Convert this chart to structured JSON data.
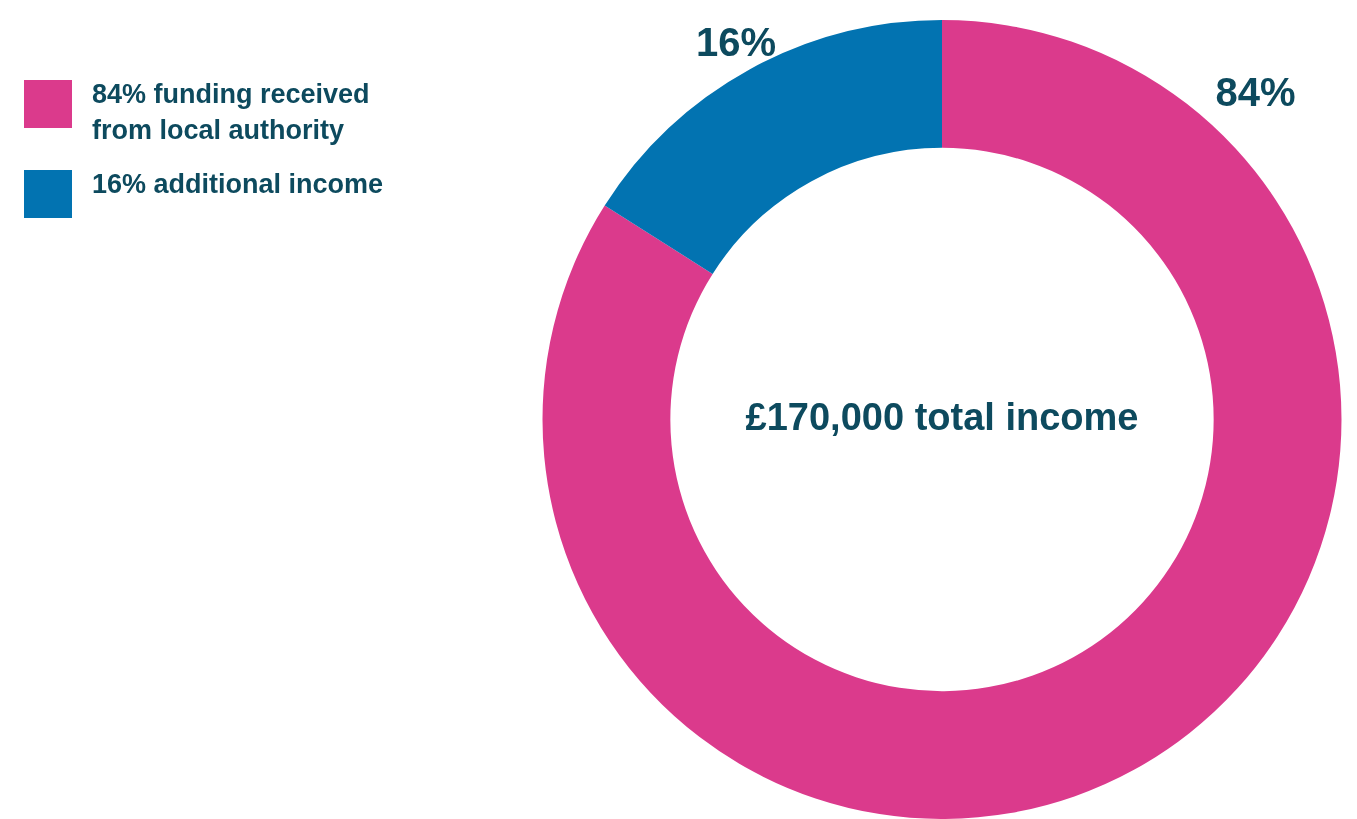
{
  "chart_data": {
    "type": "donut",
    "categories": [
      "84% funding received from local authority",
      "16% additional income"
    ],
    "values": [
      84,
      16
    ],
    "colors": [
      "#db3a8c",
      "#0273b1"
    ],
    "value_labels": [
      "84%",
      "16%"
    ],
    "annotations": [
      "£170,000 total income"
    ],
    "legend": "top left"
  }
}
